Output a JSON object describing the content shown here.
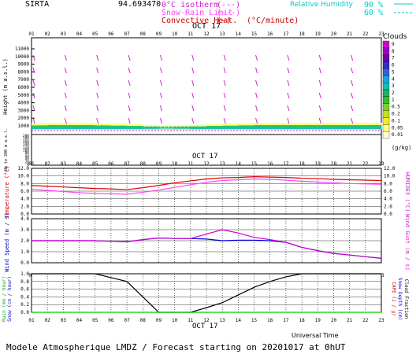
{
  "header": {
    "site": "SIRTA",
    "coords": "94.693470",
    "legend": [
      {
        "label": "0°C isotherm",
        "sym": "(---)",
        "color": "#d020d0"
      },
      {
        "label": "Snow-Rain Limit",
        "sym": "(---)",
        "color": "#ff40ff"
      },
      {
        "label": "Convective Heat.",
        "sym": "(—)",
        "color": "#cc0000"
      }
    ],
    "units": "(°C/minute)",
    "rh_label": "Relative Humidity",
    "rh_values": [
      "90 %",
      "60 %"
    ],
    "rh_color": "#00cccc"
  },
  "hours": [
    "01",
    "02",
    "03",
    "04",
    "05",
    "06",
    "07",
    "08",
    "09",
    "10",
    "11",
    "12",
    "13",
    "14",
    "15",
    "16",
    "17",
    "18",
    "19",
    "20",
    "21",
    "22",
    "23"
  ],
  "date_label": "OCT 17",
  "panel1": {
    "ylabel": "Height (m a.s.l.)",
    "ylabel_low": "Up to 200 m a.s.l.",
    "yticks_high": [
      "11000",
      "10000",
      "9000",
      "8000",
      "7000",
      "6000",
      "5000",
      "4000",
      "3000",
      "2000",
      "1000"
    ],
    "yticks_low": [
      "200",
      "180",
      "160",
      "140",
      "120",
      "100",
      "80",
      "60",
      "40",
      "20",
      "0"
    ],
    "clouds_title": "Clouds",
    "clouds_levels": [
      "9",
      "8",
      "7",
      "6",
      "5",
      "4",
      "3",
      "2",
      "1",
      "0.5",
      "0.2",
      "0.1",
      "0.05",
      "0.01"
    ],
    "clouds_units": "(g/kg)",
    "cloud_colors": [
      "#d000d0",
      "#a000c0",
      "#7000b0",
      "#3030c0",
      "#3060e0",
      "#20a0e0",
      "#10c0b0",
      "#20b060",
      "#30c030",
      "#80d020",
      "#c0e020",
      "#f0f020",
      "#ffff80",
      "#ffffd0"
    ]
  },
  "panel2": {
    "ylabel": "Temperature (°C)",
    "ylabel_right": "HUMIDEX (°C)",
    "yticks": [
      "12.0",
      "10.0",
      "8.0",
      "6.0",
      "4.0",
      "2.0",
      "0.0"
    ],
    "right_ticks": [
      "12.0",
      "10.0",
      "8.0",
      "6.0",
      "4.0",
      "2.0",
      "0.0"
    ]
  },
  "panel3": {
    "ylabel": "Wind Speed (m / s)",
    "ylabel_right": "Wind Gust (m / s)",
    "yticks": [
      "4.0",
      "3.0",
      "2.0",
      "1.0",
      "0.0"
    ]
  },
  "panel4": {
    "ylabel_left1": "Rain (mm / hour)",
    "ylabel_left2": "Snow (cm / hour)",
    "ylabel_right1": "CAPE (J / g)",
    "ylabel_right2": "Snow Depth (cm)",
    "ylabel_right3": "Cloud Fraction",
    "yticks": [
      "1.0",
      "0.8",
      "0.6",
      "0.4",
      "0.2",
      "0.0"
    ],
    "xlabel": "Universal Time"
  },
  "footer": "Modele Atmospherique LMDZ / Forecast starting on 20201017 at 0hUT",
  "chart_data": [
    {
      "type": "line",
      "title": "Temperature",
      "x": [
        1,
        2,
        3,
        4,
        5,
        6,
        7,
        8,
        9,
        10,
        11,
        12,
        13,
        14,
        15,
        16,
        17,
        18,
        19,
        20,
        21,
        22,
        23
      ],
      "series": [
        {
          "name": "Temperature",
          "color": "#e00000",
          "values": [
            7.5,
            7.3,
            7.1,
            6.9,
            6.7,
            6.6,
            6.4,
            6.9,
            7.5,
            8.2,
            8.7,
            9.2,
            9.5,
            9.6,
            9.8,
            9.7,
            9.6,
            9.4,
            9.3,
            9.1,
            9.0,
            8.9,
            8.8
          ]
        },
        {
          "name": "HUMIDEX",
          "color": "#ff40ff",
          "values": [
            6.5,
            6.2,
            5.9,
            5.6,
            5.4,
            5.3,
            5.2,
            5.7,
            6.3,
            7.0,
            7.7,
            8.3,
            8.8,
            9.0,
            9.2,
            9.1,
            8.9,
            8.6,
            8.4,
            8.2,
            8.0,
            7.9,
            7.8
          ]
        }
      ],
      "ylim": [
        0,
        12
      ]
    },
    {
      "type": "line",
      "title": "Wind",
      "x": [
        1,
        2,
        3,
        4,
        5,
        6,
        7,
        8,
        9,
        10,
        11,
        12,
        13,
        14,
        15,
        16,
        17,
        18,
        19,
        20,
        21,
        22,
        23
      ],
      "series": [
        {
          "name": "Wind Speed",
          "color": "#0000dd",
          "values": [
            2.0,
            2.0,
            2.0,
            2.0,
            2.0,
            1.95,
            1.9,
            2.1,
            2.25,
            2.2,
            2.2,
            2.15,
            2.0,
            2.05,
            2.05,
            2.0,
            1.85,
            1.4,
            1.1,
            0.85,
            0.7,
            0.55,
            0.4
          ]
        },
        {
          "name": "Wind Gust",
          "color": "#d000d0",
          "values": [
            2.0,
            2.0,
            2.0,
            2.0,
            2.0,
            1.95,
            1.9,
            2.1,
            2.25,
            2.2,
            2.2,
            2.6,
            3.0,
            2.7,
            2.3,
            2.1,
            1.85,
            1.4,
            1.1,
            0.85,
            0.7,
            0.55,
            0.4
          ]
        }
      ],
      "ylim": [
        0,
        4
      ]
    },
    {
      "type": "line",
      "title": "Cloud Fraction",
      "x": [
        1,
        2,
        3,
        4,
        5,
        6,
        7,
        8,
        9,
        10,
        11,
        12,
        13,
        14,
        15,
        16,
        17,
        18,
        19,
        20,
        21,
        22,
        23
      ],
      "series": [
        {
          "name": "Cloud Fraction",
          "color": "#000000",
          "values": [
            1.0,
            1.0,
            1.0,
            1.0,
            1.0,
            0.9,
            0.8,
            0.4,
            0.0,
            0.0,
            0.0,
            0.12,
            0.25,
            0.45,
            0.65,
            0.8,
            0.92,
            1.0,
            1.0,
            1.0,
            1.0,
            1.0,
            1.0
          ]
        },
        {
          "name": "Rain",
          "color": "#00cc00",
          "values": [
            0,
            0,
            0,
            0,
            0,
            0,
            0,
            0,
            0,
            0,
            0,
            0,
            0,
            0,
            0,
            0,
            0,
            0,
            0,
            0,
            0,
            0,
            0
          ]
        }
      ],
      "ylim": [
        0,
        1
      ]
    }
  ]
}
